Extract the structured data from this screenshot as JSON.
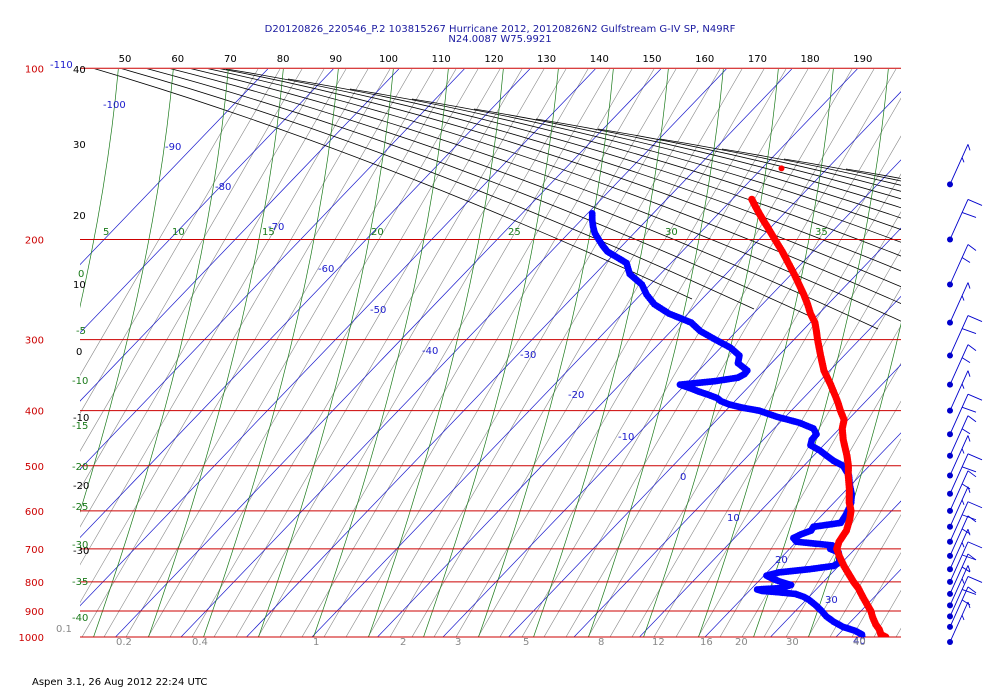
{
  "header": {
    "line1": "D20120826_220546_P.2 103815267 Hurricane 2012, 20120826N2 Gulfstream G-IV SP, N49RF",
    "line2": "N24.0087 W75.9921"
  },
  "footer": "Aspen 3.1, 26 Aug 2012  22:24 UTC",
  "colors": {
    "isobar": "#cc0000",
    "isotherm": "#1a1acc",
    "dry_adiabat": "#000000",
    "moist_adiabat": "#1a7a1a",
    "mixing_ratio": "#888888",
    "temperature": "#ff0000",
    "dewpoint": "#0000ff",
    "wind": "#0000cc",
    "top_scale": "#000000"
  },
  "chart_data": {
    "type": "skew-t log-p sounding",
    "pressure_levels": [
      100,
      200,
      300,
      400,
      500,
      600,
      700,
      800,
      900,
      1000
    ],
    "pressure_tick_labels": [
      "100",
      "200",
      "300",
      "400",
      "500",
      "600",
      "700",
      "800",
      "900",
      "1000"
    ],
    "top_scale_labels": [
      "50",
      "60",
      "70",
      "80",
      "90",
      "100",
      "110",
      "120",
      "130",
      "140",
      "150",
      "160",
      "170",
      "180",
      "190"
    ],
    "isotherm_labels": [
      "-110",
      "-100",
      "-90",
      "-80",
      "-70",
      "-60",
      "-50",
      "-40",
      "-30",
      "-20",
      "-10",
      "0",
      "10",
      "20",
      "30",
      "40"
    ],
    "dry_adiabat_labels": [
      "40",
      "30",
      "20",
      "10",
      "0",
      "-10",
      "-20",
      "-30"
    ],
    "moist_adiabat_labels": [
      "0",
      "-5",
      "-10",
      "-15",
      "-20",
      "-25",
      "-30",
      "-35",
      "-40"
    ],
    "theta_e_labels": [
      "5",
      "10",
      "15",
      "20",
      "25",
      "30",
      "35"
    ],
    "mixing_ratio_labels": [
      "0.1",
      "0.2",
      "0.4",
      "1",
      "2",
      "3",
      "5",
      "8",
      "12",
      "16",
      "20",
      "30",
      "40"
    ],
    "temperature": {
      "name": "Temperature",
      "pressure": [
        1000,
        990,
        970,
        950,
        925,
        900,
        880,
        850,
        820,
        800,
        780,
        750,
        720,
        700,
        680,
        650,
        620,
        600,
        580,
        550,
        520,
        500,
        480,
        450,
        430,
        415,
        400,
        390,
        380,
        360,
        340,
        320,
        300,
        290,
        280,
        270,
        260,
        250,
        240,
        230,
        220,
        210,
        200,
        190,
        185,
        180,
        175,
        170
      ],
      "values": [
        27.6,
        26.5,
        25.5,
        24.2,
        22.8,
        21.5,
        20.2,
        18.2,
        16.2,
        14.6,
        13.1,
        10.8,
        8.6,
        7.2,
        6.5,
        6.0,
        4.8,
        3.8,
        2.3,
        0.4,
        -1.8,
        -3.2,
        -4.9,
        -7.8,
        -9.6,
        -10.6,
        -12.5,
        -13.7,
        -15.0,
        -17.8,
        -20.9,
        -23.6,
        -26.4,
        -27.8,
        -29.3,
        -31.3,
        -33.1,
        -35.1,
        -37.3,
        -39.6,
        -42.1,
        -44.7,
        -47.6,
        -50.6,
        -52.2,
        -53.8,
        -55.4,
        -57.0
      ]
    },
    "dewpoint": {
      "name": "Dewpoint",
      "pressure": [
        1000,
        990,
        975,
        960,
        940,
        920,
        900,
        880,
        860,
        850,
        840,
        835,
        830,
        825,
        820,
        810,
        800,
        790,
        780,
        770,
        760,
        750,
        740,
        720,
        710,
        700,
        690,
        680,
        670,
        660,
        650,
        640,
        630,
        620,
        610,
        600,
        590,
        580,
        560,
        540,
        520,
        500,
        490,
        480,
        470,
        460,
        450,
        440,
        430,
        420,
        410,
        400,
        395,
        390,
        385,
        380,
        375,
        370,
        365,
        360,
        355,
        350,
        345,
        340,
        330,
        320,
        310,
        300,
        290,
        280,
        270,
        260,
        250,
        240,
        230,
        220,
        210,
        205,
        200,
        195,
        190,
        185,
        180
      ],
      "values": [
        24.0,
        23.6,
        22.0,
        19.6,
        17.4,
        15.5,
        14.0,
        12.3,
        10.4,
        9.2,
        7.5,
        5.0,
        2.0,
        1.0,
        4.6,
        5.5,
        3.5,
        1.8,
        0.4,
        1.8,
        6.0,
        9.2,
        9.6,
        8.6,
        8.0,
        6.2,
        6.0,
        0.0,
        -1.0,
        -0.4,
        0.6,
        0.4,
        4.0,
        3.8,
        3.6,
        3.3,
        3.0,
        2.6,
        1.4,
        -0.2,
        -1.7,
        -4.0,
        -6.2,
        -8.0,
        -9.8,
        -12.0,
        -12.6,
        -12.7,
        -14.0,
        -17.0,
        -21.3,
        -24.9,
        -28.0,
        -30.4,
        -32.1,
        -33.2,
        -35.0,
        -37.0,
        -38.8,
        -40.8,
        -36.0,
        -33.0,
        -32.5,
        -32.6,
        -35.1,
        -36.0,
        -38.5,
        -42.0,
        -45.5,
        -48.2,
        -52.9,
        -56.5,
        -59.1,
        -61.3,
        -64.7,
        -66.8,
        -71.4,
        -73.0,
        -74.5,
        -76.0,
        -77.2,
        -78.3,
        -79.3
      ]
    },
    "isolated_temperature_point": {
      "pressure": 150,
      "value": -57
    },
    "wind_barb_levels": [
      160,
      200,
      240,
      280,
      320,
      360,
      400,
      440,
      480,
      520,
      560,
      600,
      640,
      680,
      720,
      760,
      800,
      840,
      880,
      920,
      960,
      1000
    ],
    "grid": true,
    "legend": "none"
  }
}
